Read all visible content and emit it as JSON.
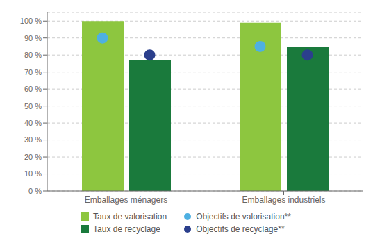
{
  "chart_data": {
    "type": "bar",
    "categories": [
      "Emballages ménagers",
      "Emballages industriels"
    ],
    "series": [
      {
        "name": "Taux de valorisation",
        "type": "bar",
        "color": "#8DC63F",
        "values": [
          100,
          99
        ]
      },
      {
        "name": "Taux de recyclage",
        "type": "bar",
        "color": "#1A7A3C",
        "values": [
          77,
          85
        ]
      },
      {
        "name": "Objectifs de valorisation**",
        "type": "scatter",
        "marker": "circle",
        "color": "#4EB0E2",
        "values": [
          90,
          85
        ]
      },
      {
        "name": "Objectifs de recyclage**",
        "type": "scatter",
        "marker": "circle",
        "color": "#2B3F8C",
        "values": [
          80,
          80
        ]
      }
    ],
    "ylim": [
      0,
      105
    ],
    "yticks": [
      {
        "value": 0,
        "label": "0 %"
      },
      {
        "value": 10,
        "label": "10 %"
      },
      {
        "value": 20,
        "label": "20 %"
      },
      {
        "value": 30,
        "label": "30 %"
      },
      {
        "value": 40,
        "label": "40 %"
      },
      {
        "value": 50,
        "label": "50 %"
      },
      {
        "value": 60,
        "label": "60 %"
      },
      {
        "value": 70,
        "label": "70 %"
      },
      {
        "value": 80,
        "label": "80 %"
      },
      {
        "value": 90,
        "label": "90 %"
      },
      {
        "value": 100,
        "label": "100 %"
      }
    ],
    "grid": true,
    "legend": "bottom"
  }
}
